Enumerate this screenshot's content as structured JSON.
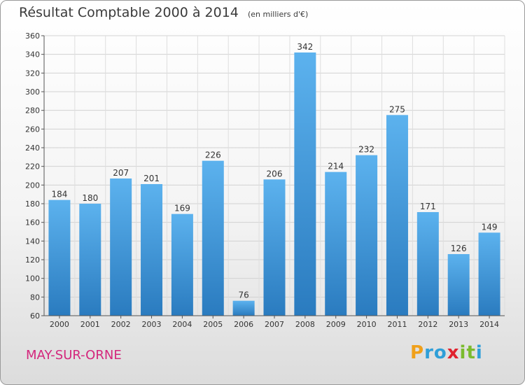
{
  "title": "Résultat Comptable 2000 à 2014",
  "subtitle": "(en milliers d'€)",
  "commune": "MAY-SUR-ORNE",
  "brand": {
    "letters": [
      "P",
      "r",
      "o",
      "x",
      "i",
      "t",
      "i"
    ],
    "colors": [
      "#f0a01a",
      "#2f9fd8",
      "#2f9fd8",
      "#e0222e",
      "#7bbb2e",
      "#7bbb2e",
      "#2f9fd8"
    ]
  },
  "chart_data": {
    "type": "bar",
    "title": "Résultat Comptable 2000 à 2014",
    "subtitle": "(en milliers d'€)",
    "xlabel": "",
    "ylabel": "",
    "categories": [
      "2000",
      "2001",
      "2002",
      "2003",
      "2004",
      "2005",
      "2006",
      "2007",
      "2008",
      "2009",
      "2010",
      "2011",
      "2012",
      "2013",
      "2014"
    ],
    "values": [
      184,
      180,
      207,
      201,
      169,
      226,
      76,
      206,
      342,
      214,
      232,
      275,
      171,
      126,
      149
    ],
    "ylim": [
      60,
      360
    ],
    "yticks": [
      60,
      80,
      100,
      120,
      140,
      160,
      180,
      200,
      220,
      240,
      260,
      280,
      300,
      320,
      340,
      360
    ],
    "grid": true,
    "bar_color": "#3d95d9"
  }
}
